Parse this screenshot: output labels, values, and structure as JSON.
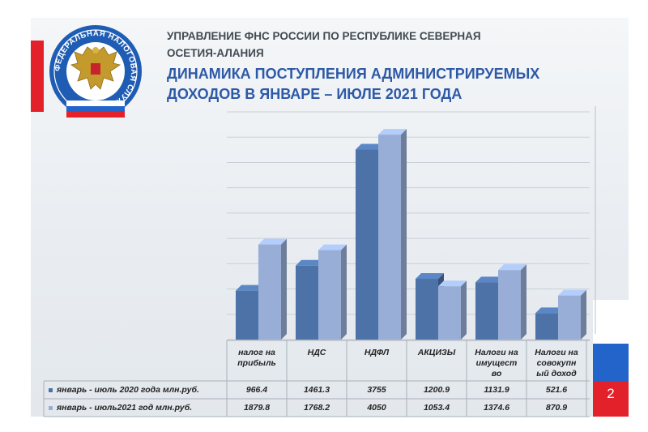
{
  "header": {
    "org": "УПРАВЛЕНИЕ ФНС РОССИИ ПО РЕСПУБЛИКЕ СЕВЕРНАЯ\nОСЕТИЯ-АЛАНИЯ",
    "title": "ДИНАМИКА ПОСТУПЛЕНИЯ АДМИНИСТРИРУЕМЫХ\nДОХОДОВ В ЯНВАРЕ – ИЮЛЕ 2021 ГОДА",
    "page_number": "2"
  },
  "logo": {
    "text": "ФЕДЕРАЛЬНАЯ НАЛОГОВАЯ СЛУЖБА",
    "icon": "double-headed-eagle-emblem"
  },
  "colors": {
    "series_2020": "#4d72a8",
    "series_2021": "#98aed6",
    "title": "#2e59a7",
    "accent_red": "#e3212a",
    "accent_blue": "#2264c9"
  },
  "chart_data": {
    "type": "bar",
    "title": "ДИНАМИКА ПОСТУПЛЕНИЯ АДМИНИСТРИРУЕМЫХ ДОХОДОВ В ЯНВАРЕ – ИЮЛЕ 2021 ГОДА",
    "categories": [
      "налог на\nприбыль",
      "НДС",
      "НДФЛ",
      "АКЦИЗЫ",
      "Налоги на\nимущест\nво",
      "Налоги на\nсовокупн\nый доход"
    ],
    "series": [
      {
        "name": "январь - июль 2020 года млн.руб.",
        "values": [
          966.4,
          1461.3,
          3755,
          1200.9,
          1131.9,
          521.6
        ],
        "labels": [
          "966.4",
          "1461.3",
          "3755",
          "1200.9",
          "1131.9",
          "521.6"
        ]
      },
      {
        "name": "январь - июль2021 год млн.руб.",
        "values": [
          1879.8,
          1768.2,
          4050,
          1053.4,
          1374.6,
          870.9
        ],
        "labels": [
          "1879.8",
          "1768.2",
          "4050",
          "1053.4",
          "1374.6",
          "870.9"
        ]
      }
    ],
    "ylim": [
      0,
      4500
    ],
    "grid": true,
    "legend": "data-table-below",
    "style": "3d-clustered-columns"
  }
}
